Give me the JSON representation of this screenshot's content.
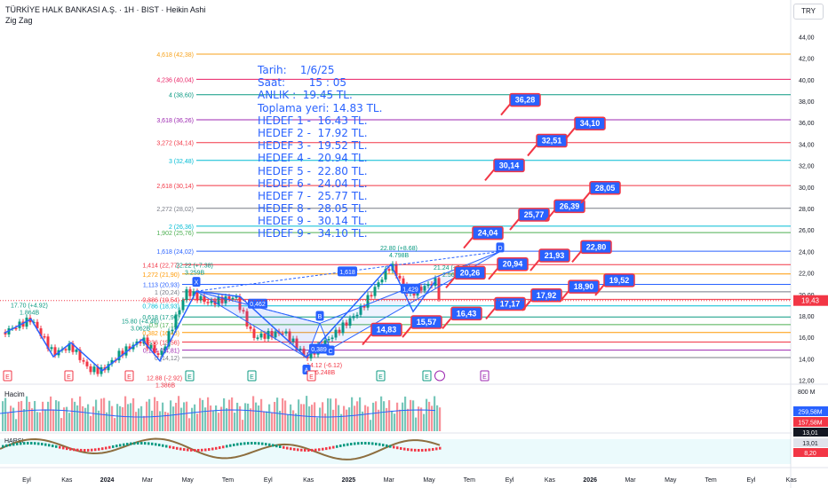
{
  "header": {
    "symbol_line": "TÜRKİYE HALK BANKASI A.Ş. · 1H · BIST · Heikin Ashi",
    "indicator": "Zig Zag"
  },
  "currency": "TRY",
  "note_lines": [
    "Tarih:    1/6/25",
    "Saat:       15 : 05",
    "ANLIK :  19.45 TL.",
    "Toplama yeri: 14.83 TL.",
    "HEDEF 1 -  16.43 TL.",
    "HEDEF 2 -  17.92 TL.",
    "HEDEF 3 -  19.52 TL.",
    "HEDEF 4 -  20.94 TL.",
    "HEDEF 5 -  22.80 TL.",
    "HEDEF 6 -  24.04 TL.",
    "HEDEF 7 -  25.77 TL.",
    "HEDEF 8 -  28.05 TL.",
    "HEDEF 9 -  30.14 TL.",
    "HEDEF 9 -  34.10 TL."
  ],
  "chart_data": {
    "type": "candlestick",
    "price_axis": {
      "min": 12,
      "max": 44,
      "ticks": [
        "44,00",
        "42,00",
        "40,00",
        "38,00",
        "36,00",
        "34,00",
        "32,00",
        "30,00",
        "28,00",
        "26,00",
        "24,00",
        "22,00",
        "20,00",
        "18,00",
        "16,00",
        "14,00",
        "12,00"
      ]
    },
    "last_price": "19,43",
    "time_axis": [
      "Eyl",
      "Kas",
      "2024",
      "Mar",
      "May",
      "Tem",
      "Eyl",
      "Kas",
      "2025",
      "Mar",
      "May",
      "Tem",
      "Eyl",
      "Kas",
      "2026",
      "Mar",
      "May",
      "Tem",
      "Eyl",
      "Kas"
    ],
    "fib_levels": [
      {
        "label": "4,618 (42,38)",
        "price": 42.38,
        "color": "#f7a21b"
      },
      {
        "label": "4,236 (40,04)",
        "price": 40.04,
        "color": "#e91e63"
      },
      {
        "label": "4 (38,60)",
        "price": 38.6,
        "color": "#089981"
      },
      {
        "label": "3,618 (36,26)",
        "price": 36.26,
        "color": "#9c27b0"
      },
      {
        "label": "3,272 (34,14)",
        "price": 34.14,
        "color": "#f23645"
      },
      {
        "label": "3 (32,48)",
        "price": 32.48,
        "color": "#00bcd4"
      },
      {
        "label": "2,618 (30,14)",
        "price": 30.14,
        "color": "#f23645"
      },
      {
        "label": "2,272 (28,02)",
        "price": 28.02,
        "color": "#787b86"
      },
      {
        "label": "2 (26,36)",
        "price": 26.36,
        "color": "#00bcd4"
      },
      {
        "label": "1,902 (25,76)",
        "price": 25.76,
        "color": "#4caf50"
      },
      {
        "label": "1,618 (24,02)",
        "price": 24.02,
        "color": "#2962ff"
      },
      {
        "label": "1,414 (22,77)",
        "price": 22.77,
        "color": "#f23645"
      },
      {
        "label": "1,272 (21,90)",
        "price": 21.9,
        "color": "#ff9800"
      },
      {
        "label": "1,113 (20,93)",
        "price": 20.93,
        "color": "#2962ff"
      },
      {
        "label": "1 (20,24)",
        "price": 20.24,
        "color": "#787b86"
      },
      {
        "label": "0,886 (19,54)",
        "price": 19.54,
        "color": "#f23645"
      },
      {
        "label": "0,786 (18,93)",
        "price": 18.93,
        "color": "#00bcd4"
      },
      {
        "label": "0,618 (17,90)",
        "price": 17.9,
        "color": "#089981"
      },
      {
        "label": "0,5 (17,18)",
        "price": 17.18,
        "color": "#4caf50"
      },
      {
        "label": "0,382 (16,45)",
        "price": 16.45,
        "color": "#ff9800"
      },
      {
        "label": "0,236 (15,56)",
        "price": 15.56,
        "color": "#f23645"
      },
      {
        "label": "0,114 (14,81)",
        "price": 14.81,
        "color": "#9c27b0"
      },
      {
        "label": "0 (14,12)",
        "price": 14.12,
        "color": "#787b86"
      }
    ],
    "targets": [
      {
        "label": "14,83",
        "price": 14.83
      },
      {
        "label": "15,57",
        "price": 15.57
      },
      {
        "label": "16,43",
        "price": 16.43
      },
      {
        "label": "17,17",
        "price": 17.17
      },
      {
        "label": "17,92",
        "price": 17.92
      },
      {
        "label": "18,90",
        "price": 18.9
      },
      {
        "label": "19,52",
        "price": 19.52
      },
      {
        "label": "20,26",
        "price": 20.26
      },
      {
        "label": "20,94",
        "price": 20.94
      },
      {
        "label": "21,93",
        "price": 21.93
      },
      {
        "label": "22,80",
        "price": 22.8
      },
      {
        "label": "24,04",
        "price": 24.04
      },
      {
        "label": "25,77",
        "price": 25.77
      },
      {
        "label": "26,39",
        "price": 26.39
      },
      {
        "label": "28,05",
        "price": 28.05
      },
      {
        "label": "30,14",
        "price": 30.14
      },
      {
        "label": "32,51",
        "price": 32.51
      },
      {
        "label": "34,10",
        "price": 34.1
      },
      {
        "label": "36,28",
        "price": 36.28
      }
    ],
    "zigzag_labels": [
      {
        "text": "17.70 (+4.92)",
        "sub": "1.864B",
        "color": "#089981"
      },
      {
        "text": "15.80 (+4.48)",
        "sub": "3.062B",
        "color": "#089981"
      },
      {
        "text": "12.88 (-2.92)",
        "sub": "1.386B",
        "color": "#f23645"
      },
      {
        "text": "22.22 (+7.38)",
        "sub": "3.259B",
        "color": "#089981"
      },
      {
        "text": "14.12 (-6.12)",
        "sub": "5.248B",
        "color": "#f23645"
      },
      {
        "text": "22.80 (+8.68)",
        "sub": "4.798B",
        "color": "#089981"
      },
      {
        "text": "21.24 (+2.92)",
        "sub": "2.563B",
        "color": "#089981"
      }
    ],
    "pattern_labels": [
      "X",
      "A",
      "B",
      "C",
      "D",
      "0,462",
      "1,618",
      "0,389",
      "1,429"
    ],
    "volume_pane": {
      "title": "Hacim",
      "axis": "800 M",
      "values": [
        "259,58M",
        "157,58M"
      ]
    },
    "osc_pane": {
      "title": "HARSI",
      "values": [
        "13,01",
        "13,01",
        "8,20"
      ]
    }
  }
}
